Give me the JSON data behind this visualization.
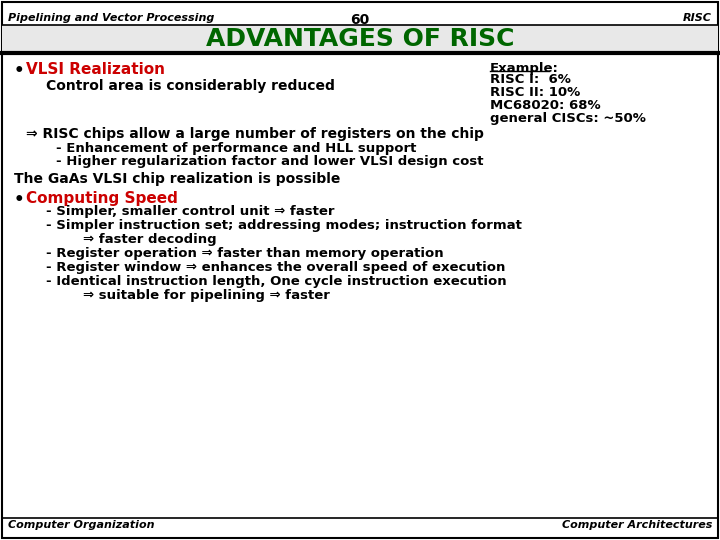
{
  "header_left": "Pipelining and Vector Processing",
  "header_center": "60",
  "header_right": "RISC",
  "title": "ADVANTAGES OF RISC",
  "footer_left": "Computer Organization",
  "footer_right": "Computer Architectures",
  "bg_color": "#ffffff",
  "title_color": "#006600",
  "red_color": "#cc0000",
  "black_color": "#000000",
  "border_color": "#000000"
}
